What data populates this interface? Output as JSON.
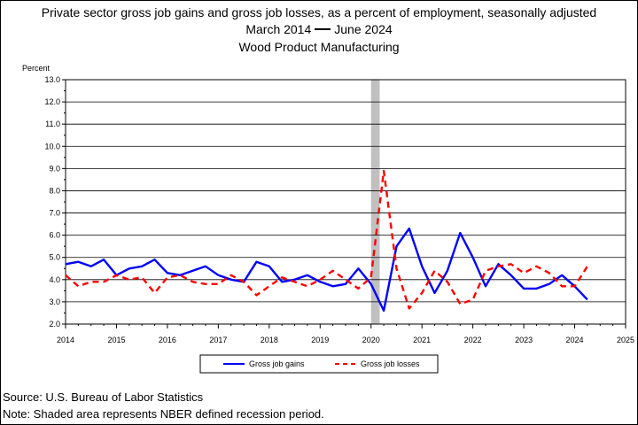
{
  "header": {
    "line1": "Private sector gross job gains and gross job losses, as a percent of employment, seasonally adjusted",
    "line2_start": "March 2014",
    "line2_end": "June 2024",
    "line3": "Wood Product Manufacturing"
  },
  "footer": {
    "source": "Source: U.S. Bureau of Labor Statistics",
    "note": "Note: Shaded area represents NBER defined recession period."
  },
  "chart_data": {
    "type": "line",
    "ylabel": "Percent",
    "xlabel": "",
    "ylim": [
      2.0,
      13.0
    ],
    "xlim": [
      2014,
      2025
    ],
    "y_ticks": [
      "2.0",
      "3.0",
      "4.0",
      "5.0",
      "6.0",
      "7.0",
      "8.0",
      "9.0",
      "10.0",
      "11.0",
      "12.0",
      "13.0"
    ],
    "x_ticks": [
      "2014",
      "2015",
      "2016",
      "2017",
      "2018",
      "2019",
      "2020",
      "2021",
      "2022",
      "2023",
      "2024",
      "2025"
    ],
    "grid": true,
    "legend": "bottom",
    "recession": [
      2020.0,
      2020.17
    ],
    "recession_color": "#c0c0c0",
    "series": [
      {
        "name": "Gross job gains",
        "color": "#0000ff",
        "style": "solid",
        "x": [
          2014.0,
          2014.25,
          2014.5,
          2014.75,
          2015.0,
          2015.25,
          2015.5,
          2015.75,
          2016.0,
          2016.25,
          2016.5,
          2016.75,
          2017.0,
          2017.25,
          2017.5,
          2017.75,
          2018.0,
          2018.25,
          2018.5,
          2018.75,
          2019.0,
          2019.25,
          2019.5,
          2019.75,
          2020.0,
          2020.25,
          2020.5,
          2020.75,
          2021.0,
          2021.25,
          2021.5,
          2021.75,
          2022.0,
          2022.25,
          2022.5,
          2022.75,
          2023.0,
          2023.25,
          2023.5,
          2023.75,
          2024.0,
          2024.25
        ],
        "values": [
          4.7,
          4.8,
          4.6,
          4.9,
          4.2,
          4.5,
          4.6,
          4.9,
          4.3,
          4.2,
          4.4,
          4.6,
          4.2,
          4.0,
          3.9,
          4.8,
          4.6,
          3.9,
          4.0,
          4.2,
          3.9,
          3.7,
          3.8,
          4.5,
          3.8,
          2.6,
          5.5,
          6.3,
          4.6,
          3.4,
          4.4,
          6.1,
          5.0,
          3.7,
          4.7,
          4.2,
          3.6,
          3.6,
          3.8,
          4.2,
          3.7,
          3.1
        ]
      },
      {
        "name": "Gross job losses",
        "color": "#ff0000",
        "style": "dashed",
        "x": [
          2014.0,
          2014.25,
          2014.5,
          2014.75,
          2015.0,
          2015.25,
          2015.5,
          2015.75,
          2016.0,
          2016.25,
          2016.5,
          2016.75,
          2017.0,
          2017.25,
          2017.5,
          2017.75,
          2018.0,
          2018.25,
          2018.5,
          2018.75,
          2019.0,
          2019.25,
          2019.5,
          2019.75,
          2020.0,
          2020.25,
          2020.5,
          2020.75,
          2021.0,
          2021.25,
          2021.5,
          2021.75,
          2022.0,
          2022.25,
          2022.5,
          2022.75,
          2023.0,
          2023.25,
          2023.5,
          2023.75,
          2024.0,
          2024.25
        ],
        "values": [
          4.2,
          3.7,
          3.9,
          3.9,
          4.2,
          4.0,
          4.1,
          3.4,
          4.1,
          4.2,
          3.9,
          3.8,
          3.8,
          4.2,
          3.9,
          3.3,
          3.7,
          4.1,
          3.9,
          3.7,
          4.0,
          4.4,
          4.0,
          3.6,
          4.1,
          8.9,
          4.5,
          2.7,
          3.4,
          4.4,
          3.9,
          2.9,
          3.1,
          4.4,
          4.6,
          4.7,
          4.3,
          4.6,
          4.3,
          3.7,
          3.7,
          4.6
        ]
      }
    ]
  }
}
